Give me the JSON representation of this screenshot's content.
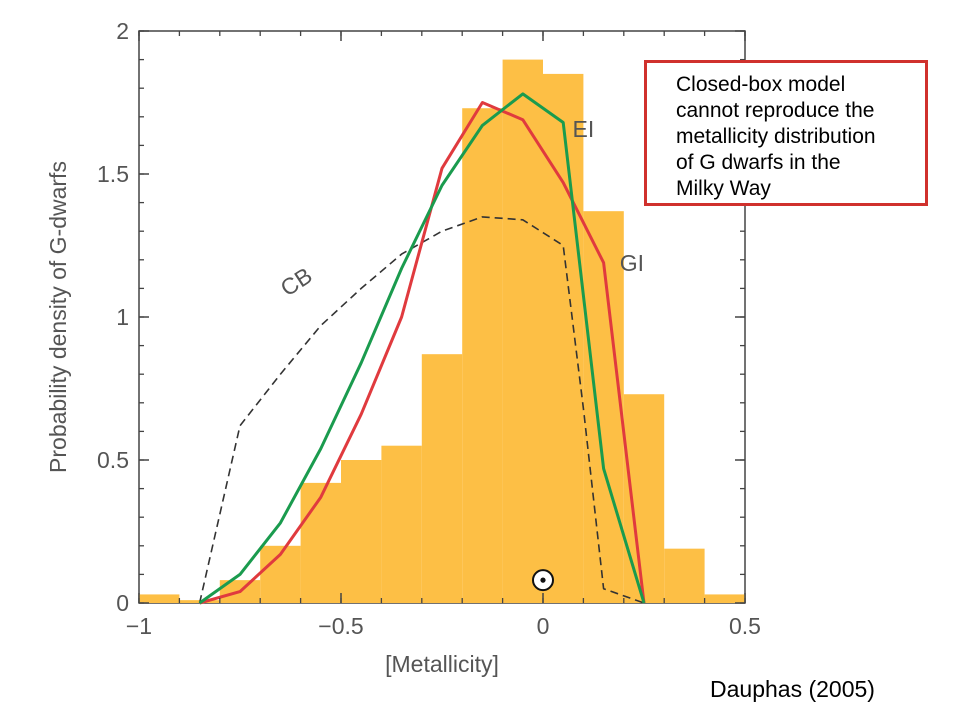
{
  "chart_data": {
    "type": "histogram-with-lines",
    "xlabel": "[Metallicity]",
    "ylabel": "Probability density of G-dwarfs",
    "xlim": [
      -1,
      0.5
    ],
    "ylim": [
      0,
      2
    ],
    "x_ticks": [
      {
        "value": -1,
        "label": "−1"
      },
      {
        "value": -0.5,
        "label": "−0.5"
      },
      {
        "value": 0,
        "label": "0"
      },
      {
        "value": 0.5,
        "label": "0.5"
      }
    ],
    "y_ticks": [
      {
        "value": 0,
        "label": "0"
      },
      {
        "value": 0.5,
        "label": "0.5"
      },
      {
        "value": 1,
        "label": "1"
      },
      {
        "value": 1.5,
        "label": "1.5"
      },
      {
        "value": 2,
        "label": "2"
      }
    ],
    "grid": false,
    "histogram": {
      "color": "#fdbf45",
      "bin_width": 0.1,
      "bins": [
        {
          "x0": -1.0,
          "value": 0.03
        },
        {
          "x0": -0.9,
          "value": 0.01
        },
        {
          "x0": -0.8,
          "value": 0.08
        },
        {
          "x0": -0.7,
          "value": 0.2
        },
        {
          "x0": -0.6,
          "value": 0.42
        },
        {
          "x0": -0.5,
          "value": 0.5
        },
        {
          "x0": -0.4,
          "value": 0.55
        },
        {
          "x0": -0.3,
          "value": 0.87
        },
        {
          "x0": -0.2,
          "value": 1.73
        },
        {
          "x0": -0.1,
          "value": 1.9
        },
        {
          "x0": 0.0,
          "value": 1.85
        },
        {
          "x0": 0.1,
          "value": 1.37
        },
        {
          "x0": 0.2,
          "value": 0.73
        },
        {
          "x0": 0.3,
          "value": 0.19
        },
        {
          "x0": 0.4,
          "value": 0.03
        }
      ]
    },
    "series": [
      {
        "name": "CB",
        "color": "#333333",
        "dashed": true,
        "points": [
          [
            -0.85,
            0.0
          ],
          [
            -0.75,
            0.62
          ],
          [
            -0.65,
            0.8
          ],
          [
            -0.55,
            0.97
          ],
          [
            -0.45,
            1.1
          ],
          [
            -0.35,
            1.22
          ],
          [
            -0.25,
            1.3
          ],
          [
            -0.15,
            1.35
          ],
          [
            -0.05,
            1.34
          ],
          [
            0.05,
            1.25
          ],
          [
            0.1,
            0.68
          ],
          [
            0.15,
            0.05
          ],
          [
            0.25,
            0.0
          ]
        ]
      },
      {
        "name": "GI",
        "color": "#e03a3e",
        "dashed": false,
        "points": [
          [
            -0.85,
            0.0
          ],
          [
            -0.75,
            0.04
          ],
          [
            -0.65,
            0.17
          ],
          [
            -0.55,
            0.37
          ],
          [
            -0.45,
            0.66
          ],
          [
            -0.35,
            1.0
          ],
          [
            -0.25,
            1.52
          ],
          [
            -0.15,
            1.75
          ],
          [
            -0.05,
            1.69
          ],
          [
            0.05,
            1.47
          ],
          [
            0.15,
            1.19
          ],
          [
            0.25,
            0.0
          ]
        ]
      },
      {
        "name": "EI",
        "color": "#1a9b4e",
        "dashed": false,
        "points": [
          [
            -0.85,
            0.0
          ],
          [
            -0.75,
            0.1
          ],
          [
            -0.65,
            0.28
          ],
          [
            -0.55,
            0.54
          ],
          [
            -0.45,
            0.84
          ],
          [
            -0.35,
            1.17
          ],
          [
            -0.25,
            1.46
          ],
          [
            -0.15,
            1.67
          ],
          [
            -0.05,
            1.78
          ],
          [
            0.05,
            1.68
          ],
          [
            0.15,
            0.47
          ],
          [
            0.25,
            0.0
          ]
        ]
      }
    ],
    "series_labels": [
      {
        "series": "CB",
        "text": "CB",
        "x": -0.6,
        "y": 1.1,
        "rotate": -33
      },
      {
        "series": "EI",
        "text": "EI",
        "x": 0.1,
        "y": 1.63,
        "rotate": 0
      },
      {
        "series": "GI",
        "text": "GI",
        "x": 0.22,
        "y": 1.16,
        "rotate": 0
      }
    ],
    "sun_marker": {
      "x": 0.0,
      "y": 0.08,
      "label": "solar symbol"
    }
  },
  "annotation": {
    "lines": [
      "Closed-box model",
      "cannot reproduce the",
      "metallicity distribution",
      "of G dwarfs in the",
      "Milky Way"
    ],
    "border_color": "#d0312d"
  },
  "credit": "Dauphas (2005)"
}
